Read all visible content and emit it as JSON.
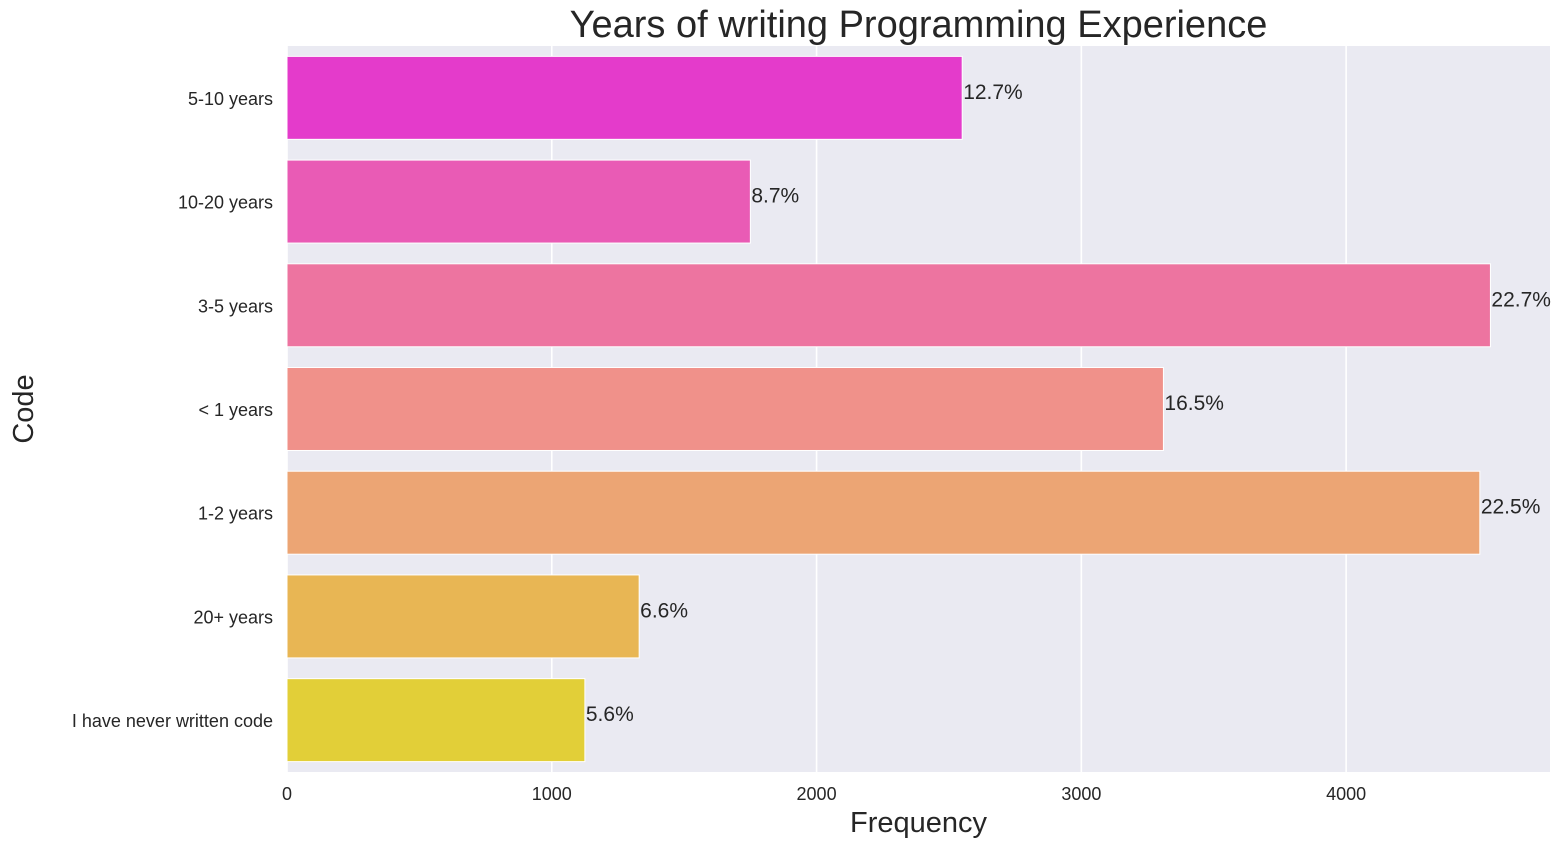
{
  "chart_data": {
    "type": "bar",
    "orientation": "horizontal",
    "title": "Years of writing Programming Experience",
    "xlabel": "Frequency",
    "ylabel": "Code",
    "categories": [
      "5-10 years",
      "10-20 years",
      "3-5 years",
      "< 1 years",
      "1-2 years",
      "20+ years",
      "I have never written code"
    ],
    "values": [
      2550,
      1750,
      4545,
      3310,
      4505,
      1330,
      1125
    ],
    "data_labels": [
      "12.7%",
      "8.7%",
      "22.7%",
      "16.5%",
      "22.5%",
      "6.6%",
      "5.6%"
    ],
    "colors": [
      "#e43bcb",
      "#e95bb5",
      "#ed74a0",
      "#f0918a",
      "#eca574",
      "#e8b654",
      "#e2cf38"
    ],
    "xticks": [
      0,
      1000,
      2000,
      3000,
      4000
    ],
    "xtick_labels": [
      "0",
      "1000",
      "2000",
      "3000",
      "4000"
    ],
    "xlim": [
      0,
      4770
    ],
    "grid": true,
    "background_color": "#eaeaf2"
  }
}
